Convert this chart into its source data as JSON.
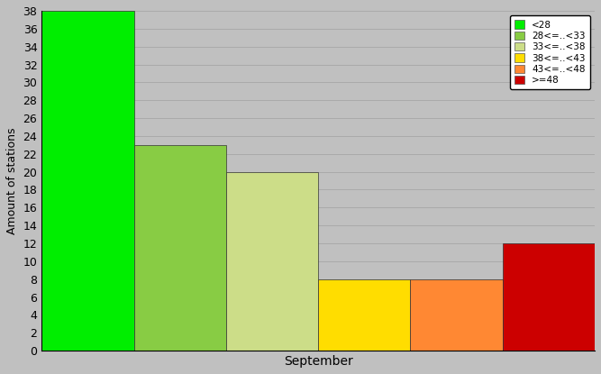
{
  "bars": [
    {
      "label": "<28",
      "value": 38,
      "color": "#00ee00"
    },
    {
      "label": "28<=..<33",
      "value": 23,
      "color": "#88cc44"
    },
    {
      "label": "33<=..<38",
      "value": 20,
      "color": "#ccdd88"
    },
    {
      "label": "38<=..<43",
      "value": 8,
      "color": "#ffdd00"
    },
    {
      "label": "43<=..<48",
      "value": 8,
      "color": "#ff8833"
    },
    {
      "label": ">=48",
      "value": 12,
      "color": "#cc0000"
    }
  ],
  "ylabel": "Amount of stations",
  "xlabel": "September",
  "ylim": [
    0,
    38
  ],
  "yticks": [
    0,
    2,
    4,
    6,
    8,
    10,
    12,
    14,
    16,
    18,
    20,
    22,
    24,
    26,
    28,
    30,
    32,
    34,
    36,
    38
  ],
  "bg_color": "#c0c0c0",
  "fig_bg_color": "#c0c0c0",
  "grid_color": "#aaaaaa",
  "bar_edge_color": "#333333"
}
